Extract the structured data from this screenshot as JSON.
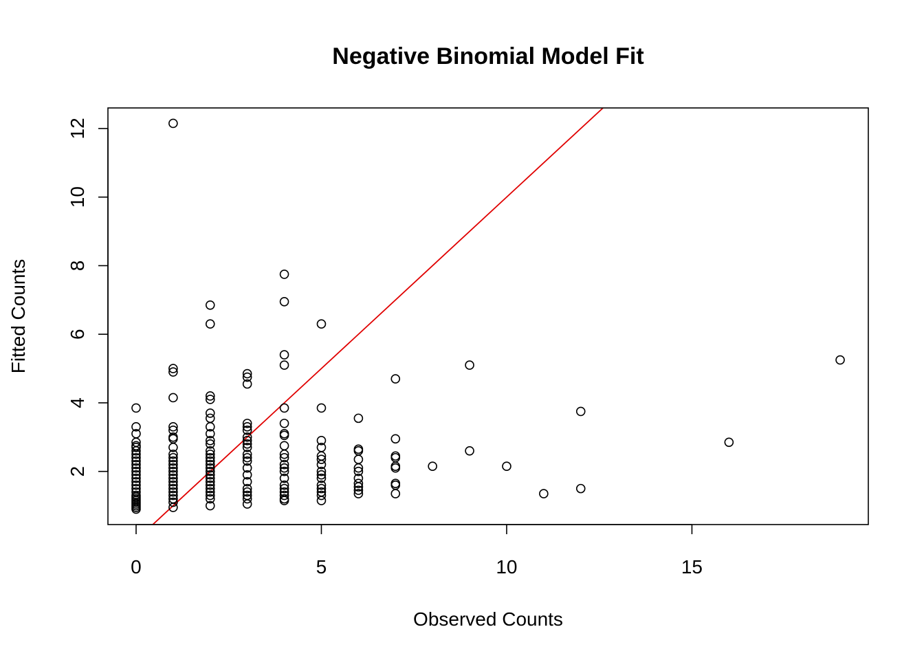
{
  "chart_data": {
    "type": "scatter",
    "title": "Negative Binomial Model Fit",
    "xlabel": "Observed Counts",
    "ylabel": "Fitted Counts",
    "xlim": [
      -0.76,
      19.76
    ],
    "ylim": [
      0.45,
      12.6
    ],
    "xticks": [
      0,
      5,
      10,
      15
    ],
    "yticks": [
      2,
      4,
      6,
      8,
      10,
      12
    ],
    "grid": false,
    "legend": "none",
    "point_color": "#000000",
    "reference_line": {
      "label": "",
      "slope": 1,
      "intercept": 0,
      "color": "#e00000"
    },
    "points": {
      "x": [
        0,
        0,
        0,
        0,
        0,
        0,
        0,
        0,
        0,
        0,
        0,
        0,
        0,
        0,
        0,
        0,
        0,
        0,
        0,
        0,
        0,
        0,
        0,
        0,
        0,
        0,
        0,
        0,
        1,
        1,
        1,
        1,
        1,
        1,
        1,
        1,
        1,
        1,
        1,
        1,
        1,
        1,
        1,
        1,
        1,
        1,
        1,
        1,
        1,
        1,
        1,
        1,
        1,
        2,
        2,
        2,
        2,
        2,
        2,
        2,
        2,
        2,
        2,
        2,
        2,
        2,
        2,
        2,
        2,
        2,
        2,
        2,
        2,
        2,
        2,
        2,
        2,
        2,
        2,
        3,
        3,
        3,
        3,
        3,
        3,
        3,
        3,
        3,
        3,
        3,
        3,
        3,
        3,
        3,
        3,
        3,
        3,
        3,
        3,
        3,
        4,
        4,
        4,
        4,
        4,
        4,
        4,
        4,
        4,
        4,
        4,
        4,
        4,
        4,
        4,
        4,
        4,
        4,
        4,
        4,
        4,
        5,
        5,
        5,
        5,
        5,
        5,
        5,
        5,
        5,
        5,
        5,
        5,
        5,
        5,
        5,
        6,
        6,
        6,
        6,
        6,
        6,
        6,
        6,
        6,
        6,
        6,
        7,
        7,
        7,
        7,
        7,
        7,
        7,
        7,
        7,
        8,
        9,
        9,
        10,
        11,
        12,
        12,
        16,
        19
      ],
      "y": [
        3.85,
        3.3,
        3.1,
        2.85,
        2.75,
        2.7,
        2.6,
        2.5,
        2.4,
        2.3,
        2.2,
        2.1,
        2.0,
        1.9,
        1.8,
        1.7,
        1.6,
        1.5,
        1.4,
        1.3,
        1.25,
        1.2,
        1.15,
        1.1,
        1.05,
        1.0,
        0.95,
        0.9,
        12.15,
        5.0,
        4.9,
        4.15,
        3.3,
        3.2,
        3.0,
        2.95,
        2.7,
        2.5,
        2.4,
        2.3,
        2.2,
        2.1,
        2.0,
        1.9,
        1.8,
        1.7,
        1.6,
        1.5,
        1.4,
        1.3,
        1.2,
        1.1,
        0.95,
        6.85,
        6.3,
        4.2,
        4.1,
        3.7,
        3.55,
        3.3,
        3.1,
        2.9,
        2.8,
        2.6,
        2.5,
        2.4,
        2.3,
        2.2,
        2.1,
        2.0,
        1.9,
        1.8,
        1.7,
        1.6,
        1.5,
        1.4,
        1.3,
        1.2,
        1.0,
        4.85,
        4.75,
        4.55,
        3.4,
        3.3,
        3.2,
        3.0,
        2.9,
        2.8,
        2.7,
        2.5,
        2.4,
        2.3,
        2.1,
        1.9,
        1.7,
        1.5,
        1.4,
        1.3,
        1.2,
        1.05,
        7.75,
        6.95,
        5.4,
        5.1,
        3.85,
        3.4,
        3.1,
        3.05,
        2.75,
        2.5,
        2.4,
        2.2,
        2.1,
        2.0,
        1.8,
        1.6,
        1.5,
        1.4,
        1.3,
        1.2,
        1.15,
        6.3,
        3.85,
        2.9,
        2.7,
        2.45,
        2.35,
        2.2,
        2.0,
        1.9,
        1.8,
        1.6,
        1.5,
        1.4,
        1.3,
        1.15,
        3.55,
        2.65,
        2.6,
        2.35,
        2.1,
        2.0,
        1.8,
        1.65,
        1.55,
        1.45,
        1.35,
        4.7,
        2.95,
        2.45,
        2.4,
        2.15,
        2.1,
        1.65,
        1.6,
        1.35,
        2.15,
        5.1,
        2.6,
        2.15,
        1.35,
        3.75,
        1.5,
        2.85,
        5.25
      ]
    }
  }
}
